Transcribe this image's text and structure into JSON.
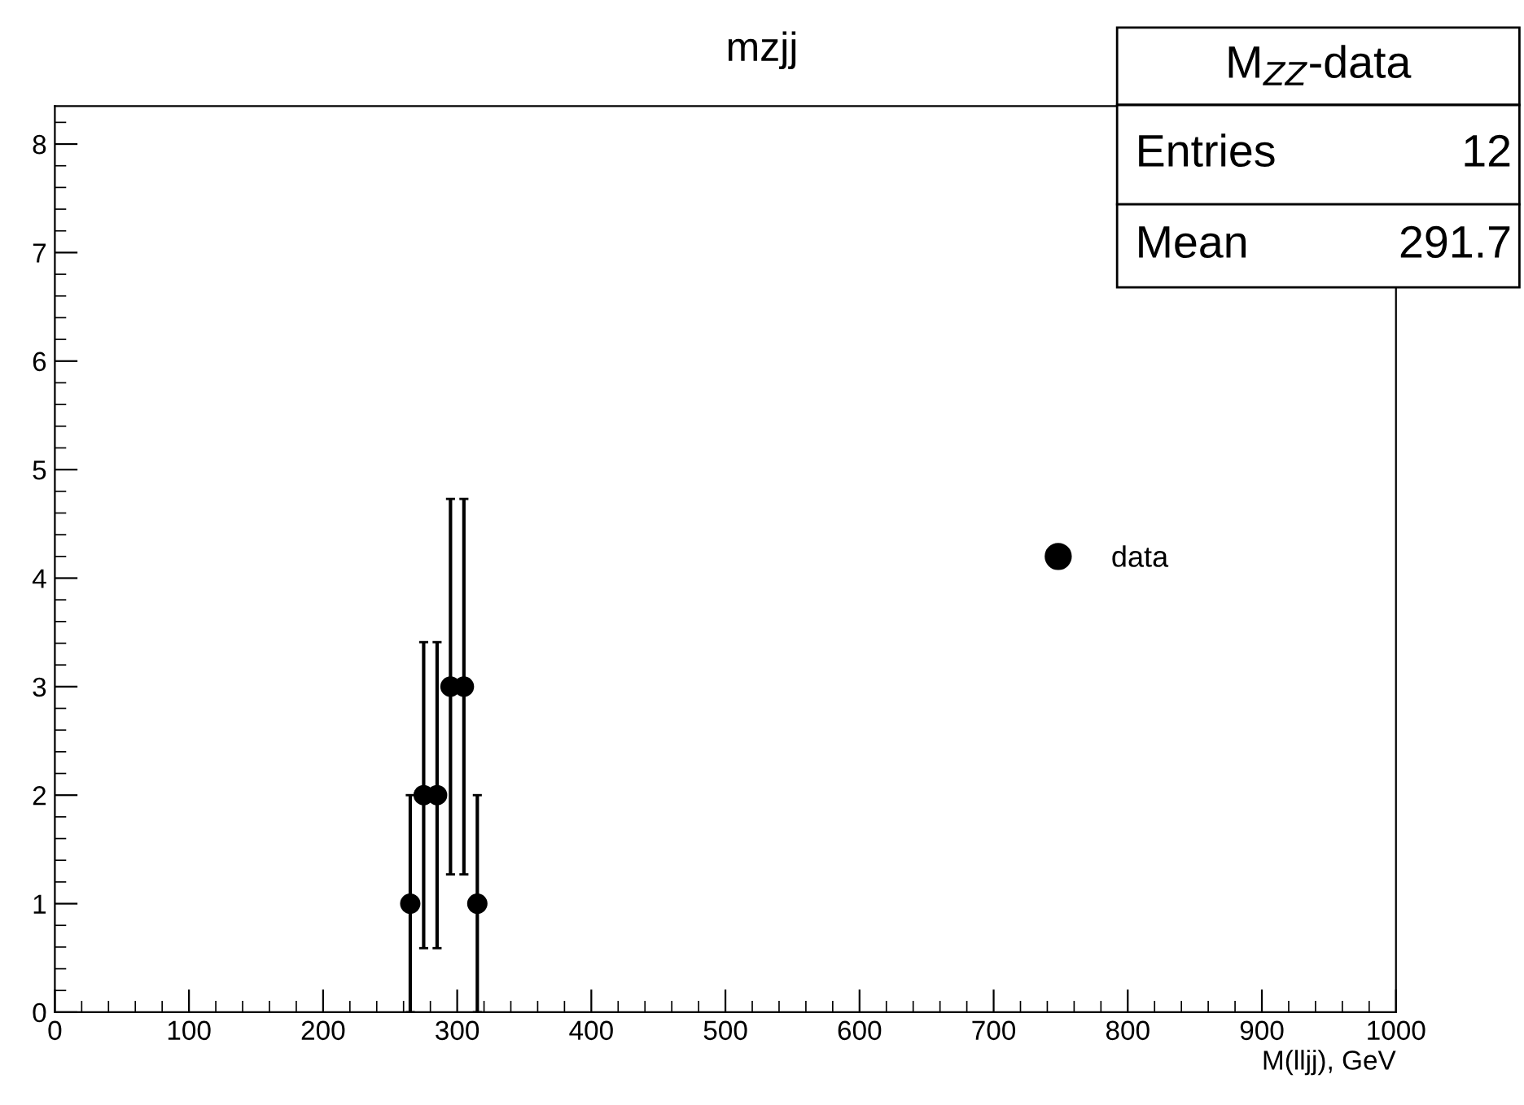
{
  "chart_data": {
    "type": "scatter",
    "title": "mzjj",
    "xlabel": "M(lljj), GeV",
    "x": [
      265,
      275,
      285,
      295,
      305,
      315
    ],
    "series": [
      {
        "name": "data",
        "color": "#000000",
        "values": [
          1,
          2,
          2,
          3,
          3,
          1
        ],
        "errors": [
          1,
          1.41,
          1.41,
          1.73,
          1.73,
          1
        ]
      }
    ],
    "xlim": [
      0,
      1000
    ],
    "xticks": [
      0,
      100,
      200,
      300,
      400,
      500,
      600,
      700,
      800,
      900,
      1000
    ],
    "ylim": [
      0,
      8.35
    ],
    "yticks": [
      0,
      1,
      2,
      3,
      4,
      5,
      6,
      7,
      8
    ],
    "marker": "circle",
    "grid": false,
    "legend": "right",
    "annotations": [
      "M$_{ZZ}$-data",
      "Entries 12",
      "Mean 291.7"
    ]
  }
}
